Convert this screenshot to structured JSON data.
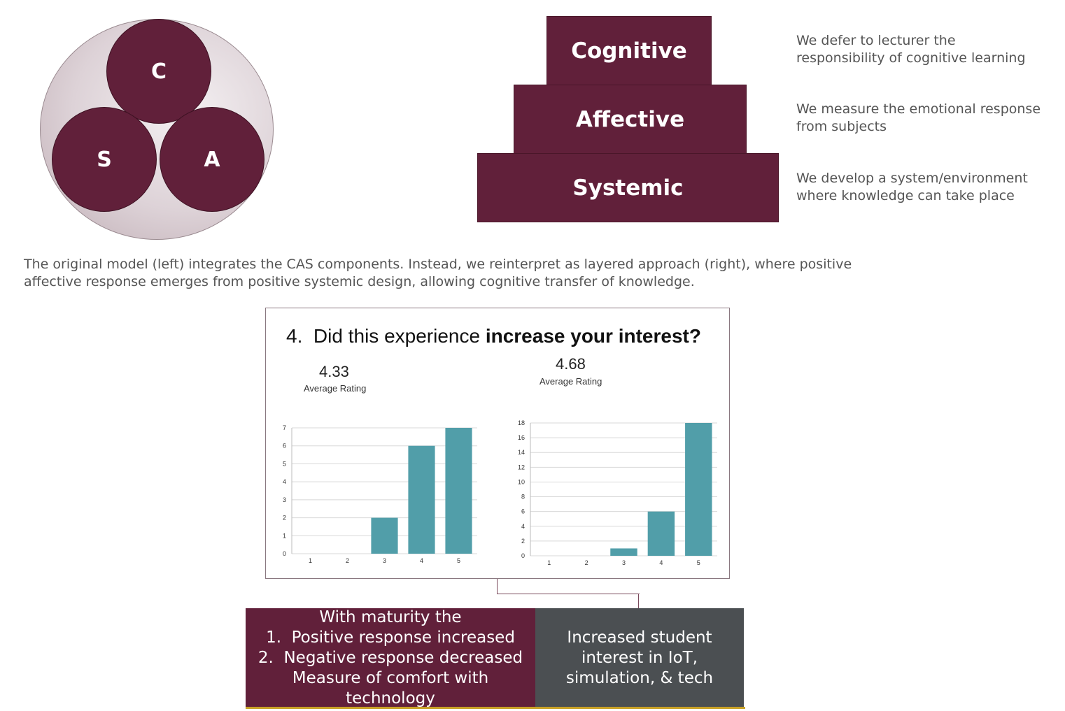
{
  "cas_model": {
    "c_label": "C",
    "s_label": "S",
    "a_label": "A"
  },
  "pyramid": {
    "layers": [
      {
        "label": "Cognitive",
        "description": "We defer to lecturer the responsibility of cognitive learning"
      },
      {
        "label": "Affective",
        "description": "We measure the emotional response from subjects"
      },
      {
        "label": "Systemic",
        "description": "We develop a system/environment where knowledge can take place"
      }
    ]
  },
  "caption": "The original model (left) integrates the CAS components. Instead, we reinterpret as layered approach (right), where positive affective response emerges from positive systemic design, allowing cognitive transfer of knowledge.",
  "survey": {
    "question_number": "4.",
    "question_plain": "Did this experience ",
    "question_bold": "increase your interest?",
    "rating_label": "Average Rating"
  },
  "chart_data": [
    {
      "type": "bar",
      "categories": [
        "1",
        "2",
        "3",
        "4",
        "5"
      ],
      "values": [
        0,
        0,
        2,
        6,
        7
      ],
      "ylim": [
        0,
        7
      ],
      "yticks": [
        "0",
        "1",
        "2",
        "3",
        "4",
        "5",
        "6",
        "7"
      ],
      "average_rating": "4.33",
      "bar_color": "#519ea9",
      "grid": true
    },
    {
      "type": "bar",
      "categories": [
        "1",
        "2",
        "3",
        "4",
        "5"
      ],
      "values": [
        0,
        0,
        1,
        6,
        18
      ],
      "ylim": [
        0,
        18
      ],
      "yticks": [
        "0",
        "2",
        "4",
        "6",
        "8",
        "10",
        "12",
        "14",
        "16",
        "18"
      ],
      "average_rating": "4.68",
      "bar_color": "#519ea9",
      "grid": true
    }
  ],
  "conclusions": {
    "left_lines": [
      "With maturity the",
      "1.  Positive response increased",
      "2.  Negative response decreased",
      "Measure of comfort with technology"
    ],
    "right_lines": [
      "Increased student",
      "interest in IoT,",
      "simulation, & tech"
    ]
  },
  "colors": {
    "maroon": "#61203a",
    "slate": "#4b4f52",
    "accent": "#c9a227"
  }
}
